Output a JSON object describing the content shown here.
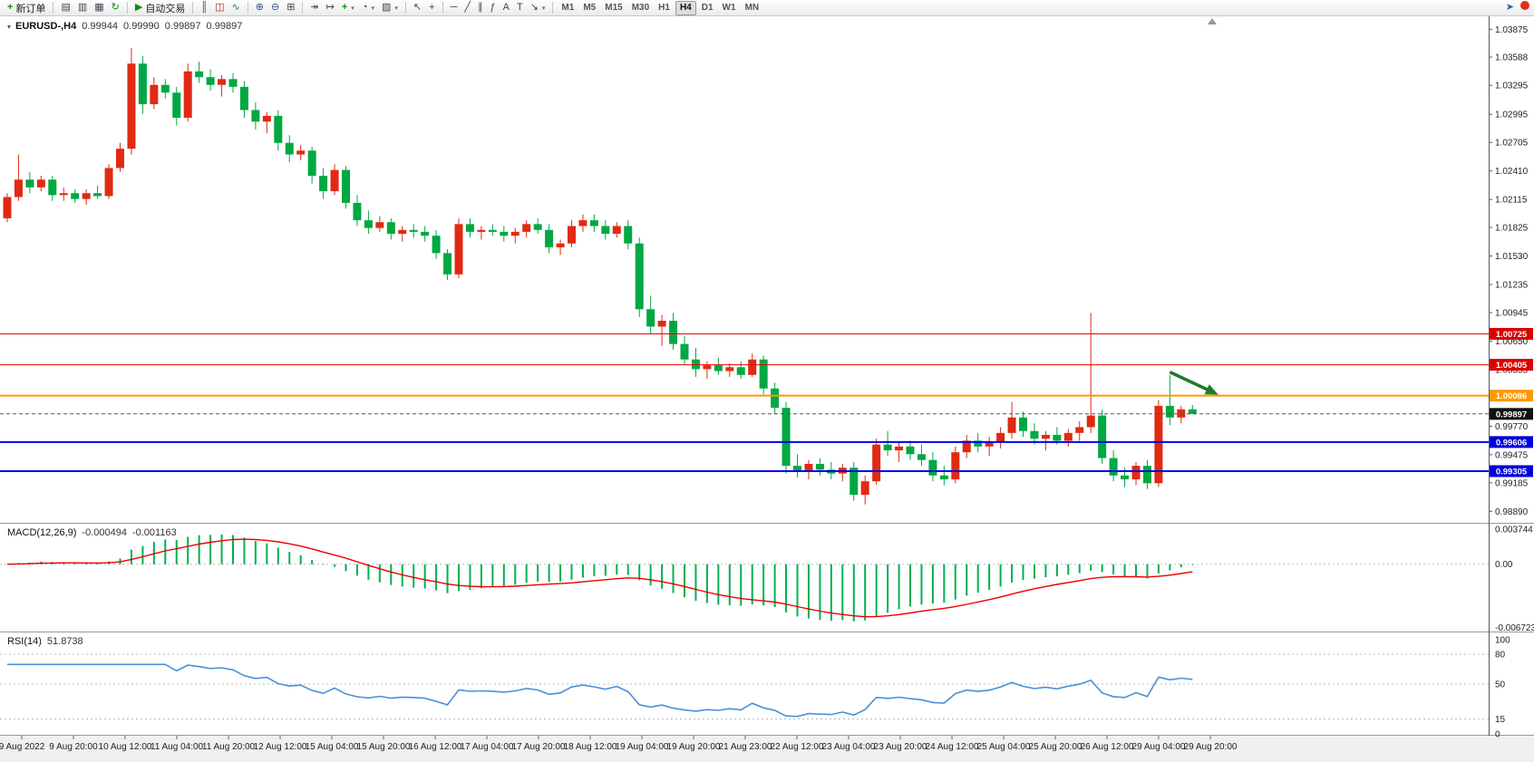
{
  "toolbar": {
    "groups": [
      {
        "items": [
          {
            "name": "new-order-button",
            "glyph": "new-order",
            "label": "新订单"
          }
        ]
      },
      {
        "items": [
          {
            "name": "market-watch-button",
            "glyph": "market-watch"
          },
          {
            "name": "data-window-button",
            "glyph": "data-window"
          },
          {
            "name": "navigator-button",
            "glyph": "navigator"
          },
          {
            "name": "refresh-button",
            "glyph": "refresh"
          }
        ]
      },
      {
        "items": [
          {
            "name": "autotrading-button",
            "glyph": "play",
            "label": "自动交易"
          }
        ]
      },
      {
        "items": [
          {
            "name": "bar-chart-button",
            "glyph": "bars"
          },
          {
            "name": "candlestick-chart-button",
            "glyph": "candles"
          },
          {
            "name": "line-chart-button",
            "glyph": "line-chart"
          }
        ]
      },
      {
        "items": [
          {
            "name": "zoom-in-button",
            "glyph": "zoom-in"
          },
          {
            "name": "zoom-out-button",
            "glyph": "zoom-out"
          },
          {
            "name": "tile-windows-button",
            "glyph": "tile-windows"
          }
        ]
      },
      {
        "items": [
          {
            "name": "auto-scroll-button",
            "glyph": "auto-scroll"
          },
          {
            "name": "chart-shift-button",
            "glyph": "chart-shift"
          },
          {
            "name": "indicators-button",
            "glyph": "indicator-add",
            "dropdown": true
          },
          {
            "name": "periods-button",
            "glyph": "clock",
            "dropdown": true
          },
          {
            "name": "templates-button",
            "glyph": "template",
            "dropdown": true
          }
        ]
      },
      {
        "items": [
          {
            "name": "cursor-button",
            "glyph": "cursor"
          },
          {
            "name": "crosshair-button",
            "glyph": "crosshair"
          }
        ]
      },
      {
        "items": [
          {
            "name": "horizontal-line-button",
            "glyph": "horizontal-line"
          },
          {
            "name": "trendline-button",
            "glyph": "trendline"
          },
          {
            "name": "equidistant-channel-button",
            "glyph": "channel"
          },
          {
            "name": "fibonacci-button",
            "glyph": "fibonacci"
          },
          {
            "name": "text-button",
            "glyph": "text-a"
          },
          {
            "name": "text-label-button",
            "glyph": "text-t"
          },
          {
            "name": "arrows-button",
            "glyph": "arrow-tool",
            "dropdown": true
          }
        ]
      },
      {
        "items": [
          {
            "name": "timeframe-m1-button",
            "label": "M1",
            "kind": "tf"
          },
          {
            "name": "timeframe-m5-button",
            "label": "M5",
            "kind": "tf"
          },
          {
            "name": "timeframe-m15-button",
            "label": "M15",
            "kind": "tf"
          },
          {
            "name": "timeframe-m30-button",
            "label": "M30",
            "kind": "tf"
          },
          {
            "name": "timeframe-h1-button",
            "label": "H1",
            "kind": "tf"
          },
          {
            "name": "timeframe-h4-button",
            "label": "H4",
            "kind": "tf",
            "active": true
          },
          {
            "name": "timeframe-d1-button",
            "label": "D1",
            "kind": "tf"
          },
          {
            "name": "timeframe-w1-button",
            "label": "W1",
            "kind": "tf"
          },
          {
            "name": "timeframe-mn-button",
            "label": "MN",
            "kind": "tf"
          }
        ]
      }
    ],
    "right_items": [
      {
        "name": "pointer-tool-button",
        "glyph": "pointer"
      },
      {
        "name": "alert-button",
        "glyph": "alert-dot"
      }
    ]
  },
  "chart_data": {
    "type": "candlestick",
    "title": "EURUSD-,H4",
    "current_bar": {
      "open": "0.99944",
      "high": "0.99990",
      "low": "0.99897",
      "close": "0.99897"
    },
    "y_axis": {
      "min": 0.9878,
      "max": 1.04,
      "labels": [
        "1.03875",
        "1.03588",
        "1.03295",
        "1.02995",
        "1.02705",
        "1.02410",
        "1.02115",
        "1.01825",
        "1.01530",
        "1.01235",
        "1.00945",
        "1.00650",
        "1.00355",
        "1.00060",
        "0.99770",
        "0.99475",
        "0.99185",
        "0.98890"
      ]
    },
    "x_axis": {
      "labels": [
        "9 Aug 2022",
        "9 Aug 20:00",
        "10 Aug 12:00",
        "11 Aug 04:00",
        "11 Aug 20:00",
        "12 Aug 12:00",
        "15 Aug 04:00",
        "15 Aug 20:00",
        "16 Aug 12:00",
        "17 Aug 04:00",
        "17 Aug 20:00",
        "18 Aug 12:00",
        "19 Aug 04:00",
        "19 Aug 20:00",
        "21 Aug 23:00",
        "22 Aug 12:00",
        "23 Aug 04:00",
        "23 Aug 20:00",
        "24 Aug 12:00",
        "25 Aug 04:00",
        "25 Aug 20:00",
        "26 Aug 12:00",
        "29 Aug 04:00",
        "29 Aug 20:00"
      ]
    },
    "colors": {
      "up": "#e02a12",
      "down": "#00a843",
      "bg": "#ffffff"
    },
    "candles_ohlc": [
      [
        1.0192,
        1.0218,
        1.0188,
        1.0214
      ],
      [
        1.0214,
        1.0258,
        1.021,
        1.0232
      ],
      [
        1.0232,
        1.024,
        1.0218,
        1.0224
      ],
      [
        1.0224,
        1.0236,
        1.022,
        1.0232
      ],
      [
        1.0232,
        1.0236,
        1.021,
        1.0216
      ],
      [
        1.0216,
        1.0224,
        1.021,
        1.0218
      ],
      [
        1.0218,
        1.0222,
        1.0208,
        1.0212
      ],
      [
        1.0212,
        1.0222,
        1.0206,
        1.0218
      ],
      [
        1.0218,
        1.0226,
        1.0212,
        1.0215
      ],
      [
        1.0215,
        1.0248,
        1.0212,
        1.0244
      ],
      [
        1.0244,
        1.027,
        1.024,
        1.0264
      ],
      [
        1.0264,
        1.0368,
        1.0258,
        1.0352
      ],
      [
        1.0352,
        1.036,
        1.03,
        1.031
      ],
      [
        1.031,
        1.0338,
        1.0305,
        1.033
      ],
      [
        1.033,
        1.0336,
        1.0316,
        1.0322
      ],
      [
        1.0322,
        1.0328,
        1.0288,
        1.0296
      ],
      [
        1.0296,
        1.0352,
        1.0292,
        1.0344
      ],
      [
        1.0344,
        1.0354,
        1.0332,
        1.0338
      ],
      [
        1.0338,
        1.0346,
        1.0324,
        1.033
      ],
      [
        1.033,
        1.034,
        1.0318,
        1.0336
      ],
      [
        1.0336,
        1.0342,
        1.0322,
        1.0328
      ],
      [
        1.0328,
        1.0334,
        1.0296,
        1.0304
      ],
      [
        1.0304,
        1.0312,
        1.0284,
        1.0292
      ],
      [
        1.0292,
        1.0302,
        1.028,
        1.0298
      ],
      [
        1.0298,
        1.0304,
        1.0262,
        1.027
      ],
      [
        1.027,
        1.0278,
        1.025,
        1.0258
      ],
      [
        1.0258,
        1.0268,
        1.0252,
        1.0262
      ],
      [
        1.0262,
        1.0266,
        1.0228,
        1.0236
      ],
      [
        1.0236,
        1.0244,
        1.0212,
        1.022
      ],
      [
        1.022,
        1.0248,
        1.0216,
        1.0242
      ],
      [
        1.0242,
        1.0246,
        1.0202,
        1.0208
      ],
      [
        1.0208,
        1.0216,
        1.0184,
        1.019
      ],
      [
        1.019,
        1.02,
        1.0176,
        1.0182
      ],
      [
        1.0182,
        1.0194,
        1.0178,
        1.0188
      ],
      [
        1.0188,
        1.0192,
        1.017,
        1.0176
      ],
      [
        1.0176,
        1.0184,
        1.0168,
        1.018
      ],
      [
        1.018,
        1.0186,
        1.0172,
        1.0178
      ],
      [
        1.0178,
        1.0184,
        1.0168,
        1.0174
      ],
      [
        1.0174,
        1.018,
        1.015,
        1.0156
      ],
      [
        1.0156,
        1.016,
        1.0128,
        1.0134
      ],
      [
        1.0134,
        1.0192,
        1.013,
        1.0186
      ],
      [
        1.0186,
        1.0192,
        1.0172,
        1.0178
      ],
      [
        1.0178,
        1.0184,
        1.017,
        1.018
      ],
      [
        1.018,
        1.0186,
        1.0174,
        1.0178
      ],
      [
        1.0178,
        1.0184,
        1.0168,
        1.0174
      ],
      [
        1.0174,
        1.0182,
        1.0166,
        1.0178
      ],
      [
        1.0178,
        1.019,
        1.0172,
        1.0186
      ],
      [
        1.0186,
        1.0192,
        1.0176,
        1.018
      ],
      [
        1.018,
        1.0186,
        1.0156,
        1.0162
      ],
      [
        1.0162,
        1.017,
        1.0154,
        1.0166
      ],
      [
        1.0166,
        1.019,
        1.0162,
        1.0184
      ],
      [
        1.0184,
        1.0196,
        1.0178,
        1.019
      ],
      [
        1.019,
        1.0196,
        1.0178,
        1.0184
      ],
      [
        1.0184,
        1.019,
        1.017,
        1.0176
      ],
      [
        1.0176,
        1.0188,
        1.0172,
        1.0184
      ],
      [
        1.0184,
        1.019,
        1.016,
        1.0166
      ],
      [
        1.0166,
        1.0172,
        1.009,
        1.0098
      ],
      [
        1.0098,
        1.0112,
        1.0072,
        1.008
      ],
      [
        1.008,
        1.0092,
        1.006,
        1.0086
      ],
      [
        1.0086,
        1.0094,
        1.0056,
        1.0062
      ],
      [
        1.0062,
        1.007,
        1.004,
        1.0046
      ],
      [
        1.0046,
        1.0058,
        1.0028,
        1.0036
      ],
      [
        1.0036,
        1.0044,
        1.0026,
        1.004
      ],
      [
        1.004,
        1.0048,
        1.003,
        1.0034
      ],
      [
        1.0034,
        1.0042,
        1.0028,
        1.0038
      ],
      [
        1.0038,
        1.0044,
        1.0026,
        1.003
      ],
      [
        1.003,
        1.0052,
        1.0028,
        1.0046
      ],
      [
        1.0046,
        1.005,
        1.001,
        1.0016
      ],
      [
        1.0016,
        1.0022,
        0.999,
        0.9996
      ],
      [
        0.9996,
        1.0002,
        0.9928,
        0.9936
      ],
      [
        0.9936,
        0.9948,
        0.9924,
        0.993
      ],
      [
        0.993,
        0.9942,
        0.9922,
        0.9938
      ],
      [
        0.9938,
        0.9944,
        0.9926,
        0.9932
      ],
      [
        0.9932,
        0.994,
        0.9922,
        0.9928
      ],
      [
        0.9928,
        0.9938,
        0.992,
        0.9934
      ],
      [
        0.9934,
        0.994,
        0.99,
        0.9906
      ],
      [
        0.9906,
        0.9926,
        0.9896,
        0.992
      ],
      [
        0.992,
        0.9964,
        0.9916,
        0.9958
      ],
      [
        0.9958,
        0.9972,
        0.9946,
        0.9952
      ],
      [
        0.9952,
        0.996,
        0.994,
        0.9956
      ],
      [
        0.9956,
        0.9962,
        0.9942,
        0.9948
      ],
      [
        0.9948,
        0.9958,
        0.9936,
        0.9942
      ],
      [
        0.9942,
        0.995,
        0.992,
        0.9926
      ],
      [
        0.9926,
        0.9936,
        0.9916,
        0.9922
      ],
      [
        0.9922,
        0.9956,
        0.9918,
        0.995
      ],
      [
        0.995,
        0.9968,
        0.9944,
        0.9962
      ],
      [
        0.9962,
        0.997,
        0.995,
        0.9956
      ],
      [
        0.9956,
        0.9966,
        0.9946,
        0.996
      ],
      [
        0.996,
        0.9976,
        0.9954,
        0.997
      ],
      [
        0.997,
        1.0002,
        0.9964,
        0.9986
      ],
      [
        0.9986,
        0.9992,
        0.9966,
        0.9972
      ],
      [
        0.9972,
        0.998,
        0.9958,
        0.9964
      ],
      [
        0.9964,
        0.9972,
        0.9952,
        0.9968
      ],
      [
        0.9968,
        0.9976,
        0.9958,
        0.9962
      ],
      [
        0.9962,
        0.9974,
        0.9956,
        0.997
      ],
      [
        0.997,
        0.9982,
        0.9962,
        0.9976
      ],
      [
        0.9976,
        1.0094,
        0.997,
        0.9988
      ],
      [
        0.9988,
        0.9994,
        0.9938,
        0.9944
      ],
      [
        0.9944,
        0.9952,
        0.992,
        0.9926
      ],
      [
        0.9926,
        0.9934,
        0.9914,
        0.9922
      ],
      [
        0.9922,
        0.994,
        0.9916,
        0.9936
      ],
      [
        0.9936,
        0.9942,
        0.9912,
        0.9918
      ],
      [
        0.9918,
        1.0004,
        0.9914,
        0.9998
      ],
      [
        0.9998,
        1.003,
        0.9978,
        0.9986
      ],
      [
        0.9986,
        0.9998,
        0.998,
        0.99944
      ],
      [
        0.99944,
        0.9999,
        0.99897,
        0.99897
      ]
    ],
    "overlays": {
      "horizontal_lines": [
        {
          "price": 1.00725,
          "label": "1.00725",
          "color": "#ee0000",
          "tag_bg": "#d90000",
          "width": 1,
          "style": "solid"
        },
        {
          "price": 1.00405,
          "label": "1.00405",
          "color": "#ee0000",
          "tag_bg": "#d90000",
          "width": 1,
          "style": "solid"
        },
        {
          "price": 1.00086,
          "label": "1.00086",
          "color": "#ff9800",
          "tag_bg": "#ff9800",
          "width": 2,
          "style": "solid"
        },
        {
          "price": 0.99606,
          "label": "0.99606",
          "color": "#0000ee",
          "tag_bg": "#0000d9",
          "width": 2,
          "style": "solid"
        },
        {
          "price": 0.99305,
          "label": "0.99305",
          "color": "#0000ee",
          "tag_bg": "#0000d9",
          "width": 2,
          "style": "solid"
        }
      ],
      "bid_line": {
        "price": 0.99897,
        "label": "0.99897",
        "color": "#555555",
        "tag_bg": "#111111",
        "style": "dashed"
      },
      "arrow": {
        "color": "#217a2b",
        "from_index": 103,
        "from_price": 1.0033,
        "to_index": 107.3,
        "to_price": 1.00095
      }
    },
    "indicators": [
      {
        "type": "macd",
        "display": "MACD(12,26,9)",
        "value_main": "-0.000494",
        "value_signal": "-0.001163",
        "axis_labels": [
          {
            "text": "0.003744",
            "value": 0.003744
          },
          {
            "text": "0.00",
            "value": 0
          },
          {
            "text": "-0.006723",
            "value": -0.006723
          }
        ],
        "histogram_color": "#00b050",
        "signal_color": "#ee0000"
      },
      {
        "type": "rsi",
        "display": "RSI(14)",
        "value": "51.8738",
        "axis_labels": [
          {
            "text": "100",
            "value": 100
          },
          {
            "text": "80",
            "value": 80
          },
          {
            "text": "50",
            "value": 50
          },
          {
            "text": "15",
            "value": 15
          },
          {
            "text": "0",
            "value": 0
          }
        ],
        "levels": [
          80,
          50,
          15
        ],
        "line_color": "#4a90d9"
      }
    ]
  }
}
